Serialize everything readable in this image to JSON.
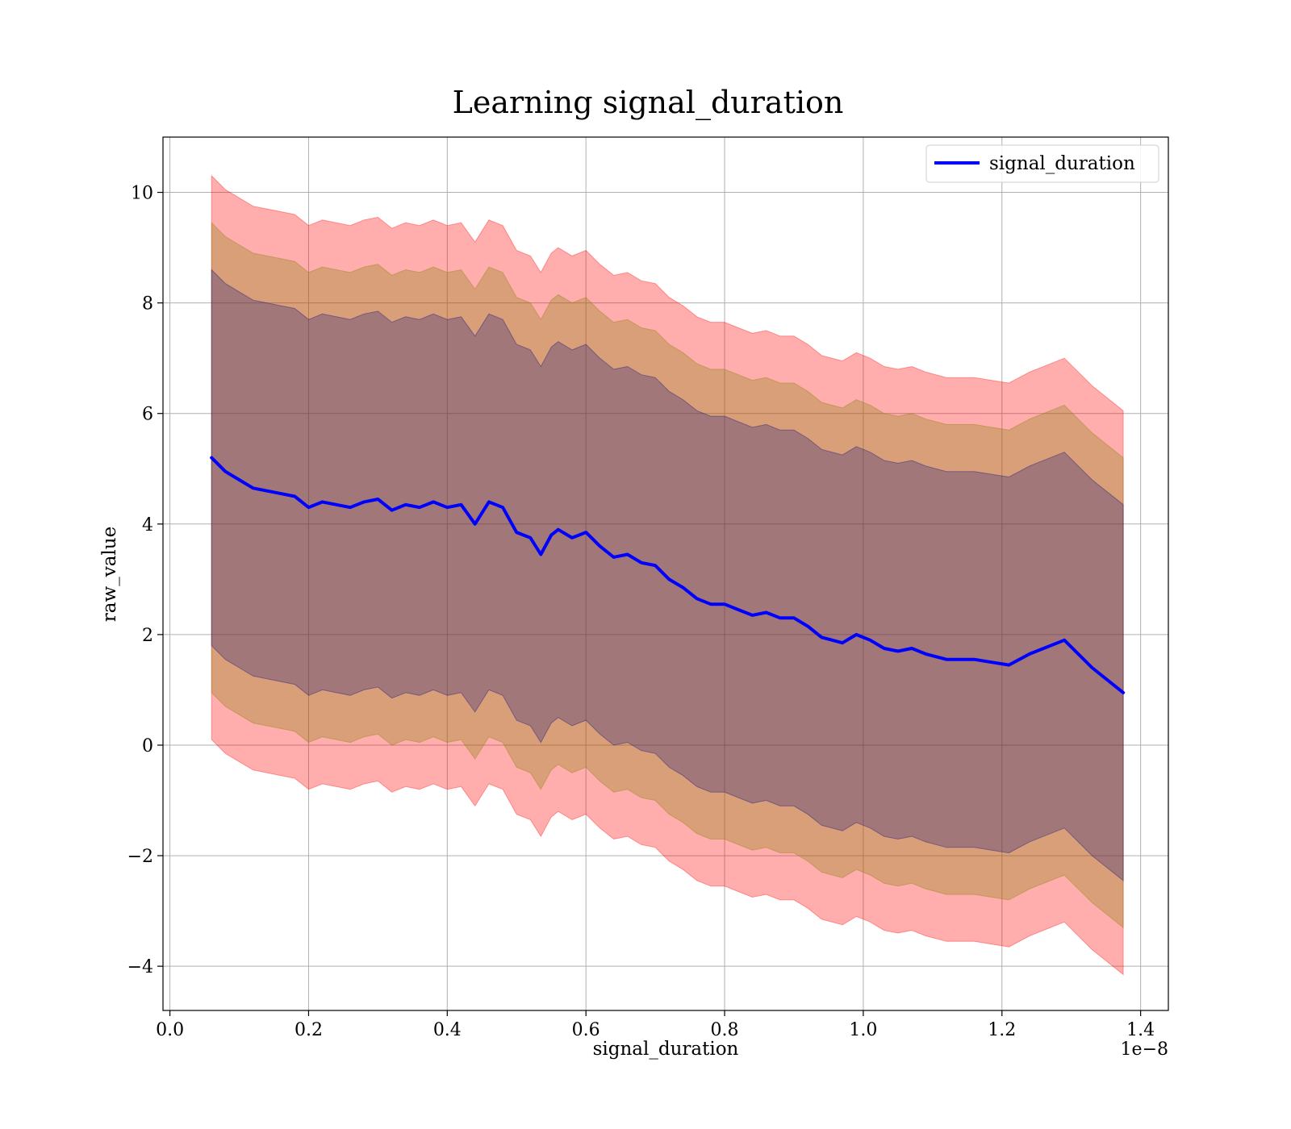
{
  "chart_data": {
    "type": "line",
    "title": "Learning signal_duration",
    "xlabel": "signal_duration",
    "ylabel": "raw_value",
    "x_offset_label": "1e−8",
    "xlim": [
      -0.01,
      1.44
    ],
    "ylim": [
      -4.8,
      11.0
    ],
    "xticks": [
      0.0,
      0.2,
      0.4,
      0.6,
      0.8,
      1.0,
      1.2,
      1.4
    ],
    "xtick_labels": [
      "0.0",
      "0.2",
      "0.4",
      "0.6",
      "0.8",
      "1.0",
      "1.2",
      "1.4"
    ],
    "yticks": [
      -4,
      -2,
      0,
      2,
      4,
      6,
      8,
      10
    ],
    "ytick_labels": [
      "−4",
      "−2",
      "0",
      "2",
      "4",
      "6",
      "8",
      "10"
    ],
    "grid": true,
    "legend_position": "top-right",
    "x": [
      0.06,
      0.08,
      0.1,
      0.12,
      0.14,
      0.16,
      0.18,
      0.2,
      0.22,
      0.24,
      0.26,
      0.28,
      0.3,
      0.32,
      0.34,
      0.36,
      0.38,
      0.4,
      0.42,
      0.44,
      0.46,
      0.48,
      0.5,
      0.52,
      0.535,
      0.55,
      0.56,
      0.58,
      0.6,
      0.62,
      0.64,
      0.66,
      0.68,
      0.7,
      0.72,
      0.74,
      0.76,
      0.78,
      0.8,
      0.82,
      0.84,
      0.86,
      0.88,
      0.9,
      0.92,
      0.94,
      0.97,
      0.99,
      1.01,
      1.03,
      1.05,
      1.07,
      1.09,
      1.12,
      1.16,
      1.185,
      1.21,
      1.24,
      1.29,
      1.33,
      1.375
    ],
    "series": [
      {
        "name": "signal_duration",
        "color": "#0000ff",
        "values": [
          5.2,
          4.95,
          4.8,
          4.65,
          4.6,
          4.55,
          4.5,
          4.3,
          4.4,
          4.35,
          4.3,
          4.4,
          4.45,
          4.25,
          4.35,
          4.3,
          4.4,
          4.3,
          4.35,
          4.0,
          4.4,
          4.3,
          3.85,
          3.75,
          3.45,
          3.8,
          3.9,
          3.75,
          3.85,
          3.6,
          3.4,
          3.45,
          3.3,
          3.25,
          3.0,
          2.85,
          2.65,
          2.55,
          2.55,
          2.45,
          2.35,
          2.4,
          2.3,
          2.3,
          2.15,
          1.95,
          1.85,
          2.0,
          1.9,
          1.75,
          1.7,
          1.75,
          1.65,
          1.55,
          1.55,
          1.5,
          1.45,
          1.65,
          1.9,
          1.4,
          0.95
        ]
      }
    ],
    "bands": [
      {
        "color": "#ff0000",
        "opacity": 0.32,
        "sigma_multiplier": 3.0
      },
      {
        "color": "#808000",
        "opacity": 0.3,
        "sigma_multiplier": 2.5
      },
      {
        "color": "#000080",
        "opacity": 0.25,
        "sigma_multiplier": 2.0
      }
    ],
    "sigma": [
      1.7,
      1.7,
      1.7,
      1.7,
      1.7,
      1.7,
      1.7,
      1.7,
      1.7,
      1.7,
      1.7,
      1.7,
      1.7,
      1.7,
      1.7,
      1.7,
      1.7,
      1.7,
      1.7,
      1.7,
      1.7,
      1.7,
      1.7,
      1.7,
      1.7,
      1.7,
      1.7,
      1.7,
      1.7,
      1.7,
      1.7,
      1.7,
      1.7,
      1.7,
      1.7,
      1.7,
      1.7,
      1.7,
      1.7,
      1.7,
      1.7,
      1.7,
      1.7,
      1.7,
      1.7,
      1.7,
      1.7,
      1.7,
      1.7,
      1.7,
      1.7,
      1.7,
      1.7,
      1.7,
      1.7,
      1.7,
      1.7,
      1.7,
      1.7,
      1.7,
      1.7
    ]
  }
}
